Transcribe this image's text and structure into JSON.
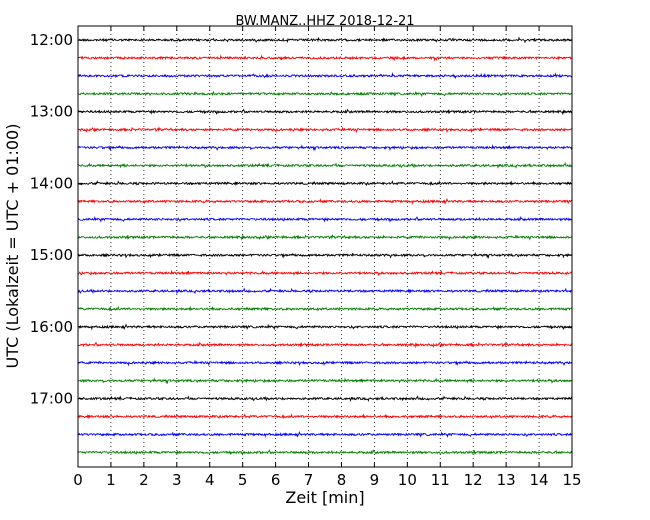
{
  "chart_data": {
    "type": "line",
    "title": "BW.MANZ..HHZ 2018-12-21",
    "xlabel": "Zeit  [min]",
    "ylabel": "UTC (Lokalzeit = UTC + 01:00)",
    "xlim": [
      0,
      15
    ],
    "x_ticks": [
      "0",
      "1",
      "2",
      "3",
      "4",
      "5",
      "6",
      "7",
      "8",
      "9",
      "10",
      "11",
      "12",
      "13",
      "14",
      "15"
    ],
    "y_ticks": [
      "12:00",
      "13:00",
      "14:00",
      "15:00",
      "16:00",
      "17:00"
    ],
    "vertical_grid": true,
    "grid_style": "dotted",
    "trace_colors": [
      "#000000",
      "#ff0000",
      "#0000ff",
      "#008000"
    ],
    "series": [
      {
        "start": "12:00",
        "color": "#000000"
      },
      {
        "start": "12:15",
        "color": "#ff0000"
      },
      {
        "start": "12:30",
        "color": "#0000ff"
      },
      {
        "start": "12:45",
        "color": "#008000"
      },
      {
        "start": "13:00",
        "color": "#000000"
      },
      {
        "start": "13:15",
        "color": "#ff0000"
      },
      {
        "start": "13:30",
        "color": "#0000ff"
      },
      {
        "start": "13:45",
        "color": "#008000"
      },
      {
        "start": "14:00",
        "color": "#000000"
      },
      {
        "start": "14:15",
        "color": "#ff0000"
      },
      {
        "start": "14:30",
        "color": "#0000ff"
      },
      {
        "start": "14:45",
        "color": "#008000"
      },
      {
        "start": "15:00",
        "color": "#000000"
      },
      {
        "start": "15:15",
        "color": "#ff0000"
      },
      {
        "start": "15:30",
        "color": "#0000ff"
      },
      {
        "start": "15:45",
        "color": "#008000"
      },
      {
        "start": "16:00",
        "color": "#000000"
      },
      {
        "start": "16:15",
        "color": "#ff0000"
      },
      {
        "start": "16:30",
        "color": "#0000ff"
      },
      {
        "start": "16:45",
        "color": "#008000"
      },
      {
        "start": "17:00",
        "color": "#000000"
      },
      {
        "start": "17:15",
        "color": "#ff0000"
      },
      {
        "start": "17:30",
        "color": "#0000ff"
      },
      {
        "start": "17:45",
        "color": "#008000"
      }
    ]
  }
}
